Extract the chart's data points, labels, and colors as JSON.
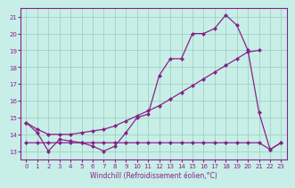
{
  "x": [
    0,
    1,
    2,
    3,
    4,
    5,
    6,
    7,
    8,
    9,
    10,
    11,
    12,
    13,
    14,
    15,
    16,
    17,
    18,
    19,
    20,
    21,
    22,
    23
  ],
  "line1_x": [
    0,
    1,
    2,
    3,
    4,
    5,
    6,
    7,
    8,
    9,
    10,
    11,
    12,
    13,
    14,
    15,
    16,
    17,
    18,
    19,
    20,
    21,
    22,
    23
  ],
  "line1_y": [
    14.7,
    14.1,
    13.0,
    13.7,
    13.6,
    13.5,
    13.3,
    13.0,
    13.3,
    14.1,
    15.0,
    15.2,
    17.5,
    18.5,
    18.5,
    20.0,
    20.0,
    20.3,
    21.1,
    20.5,
    19.0,
    15.3,
    13.1,
    13.5
  ],
  "line2_x": [
    0,
    1,
    2,
    3,
    4,
    5,
    6,
    7,
    8,
    9,
    10,
    11,
    12,
    13,
    14,
    15,
    16,
    17,
    18,
    19,
    20,
    21
  ],
  "line2_y": [
    14.7,
    14.3,
    14.0,
    14.0,
    14.0,
    14.1,
    14.2,
    14.3,
    14.5,
    14.8,
    15.1,
    15.4,
    15.7,
    16.1,
    16.5,
    16.9,
    17.3,
    17.7,
    18.1,
    18.5,
    18.9,
    19.0
  ],
  "line3_x": [
    0,
    1,
    2,
    3,
    4,
    5,
    6,
    7,
    8,
    9,
    10,
    11,
    12,
    13,
    14,
    15,
    16,
    17,
    18,
    19,
    20,
    21,
    22,
    23
  ],
  "line3_y": [
    13.5,
    13.5,
    13.5,
    13.5,
    13.5,
    13.5,
    13.5,
    13.5,
    13.5,
    13.5,
    13.5,
    13.5,
    13.5,
    13.5,
    13.5,
    13.5,
    13.5,
    13.5,
    13.5,
    13.5,
    13.5,
    13.5,
    13.1,
    13.5
  ],
  "color": "#882288",
  "bg_color": "#c8eee8",
  "grid_color": "#99ccbb",
  "xlabel": "Windchill (Refroidissement éolien,°C)",
  "xlim": [
    -0.5,
    23.5
  ],
  "ylim": [
    12.5,
    21.5
  ],
  "yticks": [
    13,
    14,
    15,
    16,
    17,
    18,
    19,
    20,
    21
  ],
  "xticks": [
    0,
    1,
    2,
    3,
    4,
    5,
    6,
    7,
    8,
    9,
    10,
    11,
    12,
    13,
    14,
    15,
    16,
    17,
    18,
    19,
    20,
    21,
    22,
    23
  ]
}
